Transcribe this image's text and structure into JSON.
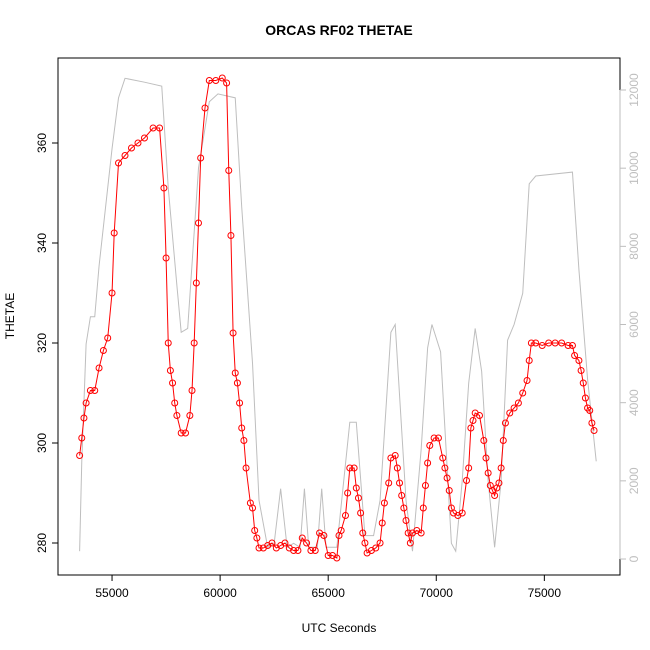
{
  "chart_data": {
    "type": "line",
    "title": "ORCAS RF02 THETAE",
    "x_label": "UTC Seconds",
    "y_label": "THETAE",
    "xlim": [
      52500,
      78500
    ],
    "xticks": [
      55000,
      60000,
      65000,
      70000,
      75000
    ],
    "ylim": [
      273.6,
      377
    ],
    "yticks": [
      280,
      300,
      320,
      340,
      360
    ],
    "y2lim": [
      -409,
      12819
    ],
    "y2ticks": [
      0,
      2000,
      4000,
      6000,
      8000,
      10000,
      12000
    ],
    "y2_color": "#bebebe",
    "series": [
      {
        "color": "#bebebe",
        "axis": "y2",
        "x": [
          53500,
          53600,
          53800,
          54000,
          54200,
          54400,
          54600,
          55000,
          55300,
          55600,
          56500,
          57300,
          57600,
          58000,
          58200,
          58500,
          59000,
          59500,
          59900,
          60700,
          61000,
          61500,
          61800,
          62200,
          62500,
          62800,
          63100,
          63400,
          63700,
          63900,
          64100,
          64500,
          64700,
          64900,
          65400,
          66000,
          66300,
          66700,
          67100,
          67400,
          67900,
          68100,
          68600,
          68900,
          69300,
          69600,
          69800,
          70200,
          70700,
          70900,
          71200,
          71500,
          71800,
          72100,
          72400,
          72700,
          73000,
          73300,
          73600,
          74000,
          74300,
          74600,
          76300,
          76600,
          77000,
          77400
        ],
        "values": [
          200,
          2500,
          5500,
          6200,
          6200,
          7500,
          8500,
          10500,
          11800,
          12300,
          12200,
          12100,
          9500,
          7000,
          5800,
          5900,
          10000,
          11700,
          11900,
          11800,
          9000,
          5000,
          1500,
          300,
          400,
          1800,
          300,
          400,
          300,
          1800,
          300,
          300,
          1800,
          300,
          300,
          3500,
          3500,
          600,
          600,
          1500,
          5800,
          6000,
          1500,
          200,
          2800,
          5400,
          6000,
          5300,
          400,
          200,
          2000,
          4500,
          5900,
          4800,
          2000,
          300,
          2000,
          5600,
          6000,
          6800,
          9600,
          9800,
          9900,
          7400,
          4600,
          2500
        ]
      },
      {
        "color": "#ff0000",
        "marker": "circle",
        "x": [
          53500,
          53600,
          53700,
          53800,
          54000,
          54200,
          54400,
          54600,
          54800,
          55000,
          55100,
          55300,
          55600,
          55900,
          56200,
          56500,
          56900,
          57200,
          57400,
          57500,
          57600,
          57700,
          57800,
          57900,
          58000,
          58200,
          58400,
          58600,
          58700,
          58800,
          58900,
          59000,
          59100,
          59300,
          59500,
          59800,
          60100,
          60300,
          60400,
          60500,
          60600,
          60700,
          60800,
          60900,
          61000,
          61100,
          61200,
          61400,
          61500,
          61600,
          61700,
          61800,
          62000,
          62200,
          62400,
          62600,
          62800,
          63000,
          63200,
          63400,
          63600,
          63800,
          64000,
          64200,
          64400,
          64600,
          64800,
          65000,
          65200,
          65400,
          65500,
          65600,
          65800,
          65900,
          66000,
          66200,
          66300,
          66400,
          66500,
          66600,
          66700,
          66800,
          67000,
          67200,
          67400,
          67500,
          67600,
          67800,
          67900,
          68100,
          68200,
          68300,
          68400,
          68500,
          68600,
          68700,
          68800,
          68900,
          69100,
          69300,
          69400,
          69500,
          69600,
          69700,
          69900,
          70100,
          70300,
          70400,
          70500,
          70600,
          70700,
          70800,
          71000,
          71200,
          71400,
          71500,
          71600,
          71700,
          71800,
          72000,
          72200,
          72300,
          72400,
          72500,
          72600,
          72700,
          72800,
          72900,
          73000,
          73100,
          73200,
          73400,
          73600,
          73800,
          74000,
          74200,
          74300,
          74400,
          74600,
          74900,
          75200,
          75500,
          75800,
          76100,
          76300,
          76400,
          76600,
          76700,
          76800,
          76900,
          77000,
          77100,
          77200,
          77300
        ],
        "values": [
          297.5,
          301,
          305,
          308,
          310.5,
          310.5,
          315,
          318.5,
          321,
          330,
          342,
          356,
          357.5,
          359,
          360,
          361,
          363,
          363,
          351,
          337,
          320,
          314.5,
          312,
          308,
          305.5,
          302,
          302,
          305.5,
          310.5,
          320,
          332,
          344,
          357,
          367,
          372.5,
          372.5,
          373,
          372,
          354.5,
          341.5,
          322,
          314,
          312,
          308,
          303,
          300.5,
          295,
          288,
          287,
          282.5,
          281,
          279,
          279,
          279.5,
          280,
          279,
          279.5,
          280,
          279,
          278.5,
          278.5,
          281,
          280,
          278.5,
          278.5,
          282,
          281.5,
          277.5,
          277.5,
          277,
          281.5,
          282.5,
          285.5,
          290,
          295,
          295,
          291,
          289,
          286,
          282,
          280,
          278,
          278.5,
          279,
          280,
          284,
          288,
          292,
          297,
          297.5,
          295,
          292,
          289.5,
          287,
          284.5,
          282,
          280,
          282,
          282.5,
          282,
          287,
          291.5,
          296,
          299.5,
          301,
          301,
          297,
          295,
          293,
          290.5,
          287,
          286,
          285.5,
          286,
          292.5,
          295,
          303,
          304.5,
          306,
          305.5,
          300.5,
          297,
          294,
          291.5,
          290.5,
          289.5,
          291,
          292,
          295,
          300.5,
          304,
          306,
          307,
          308,
          310,
          312.5,
          316.5,
          320,
          320,
          319.5,
          320,
          320,
          320,
          319.5,
          319.5,
          317.5,
          316.5,
          314.5,
          312,
          309,
          307,
          306.5,
          304,
          302.5
        ]
      }
    ]
  }
}
